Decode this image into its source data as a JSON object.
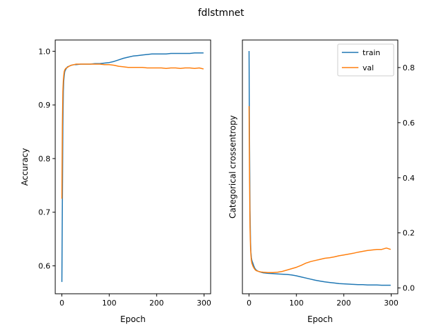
{
  "figure_title": "fdlstmnet",
  "colors": {
    "train": "#1f77b4",
    "val": "#ff7f0e"
  },
  "chart_data": [
    {
      "type": "line",
      "title": "",
      "xlabel": "Epoch",
      "ylabel": "Accuracy",
      "y_axis_side": "left",
      "xlim": [
        -14,
        314
      ],
      "ylim": [
        0.548,
        1.021
      ],
      "xticks": [
        0,
        100,
        200,
        300
      ],
      "yticks": [
        0.6,
        0.7,
        0.8,
        0.9,
        1.0
      ],
      "ytick_labels": [
        "0.6",
        "0.7",
        "0.8",
        "0.9",
        "1.0"
      ],
      "legend": null,
      "series": [
        {
          "key": "train",
          "x": [
            0,
            1,
            2,
            3,
            4,
            5,
            6,
            8,
            10,
            12,
            15,
            20,
            25,
            30,
            40,
            50,
            60,
            70,
            80,
            90,
            100,
            110,
            120,
            130,
            140,
            150,
            160,
            170,
            180,
            190,
            200,
            210,
            220,
            230,
            240,
            250,
            260,
            270,
            280,
            290,
            299
          ],
          "values": [
            0.57,
            0.72,
            0.86,
            0.925,
            0.945,
            0.955,
            0.962,
            0.966,
            0.969,
            0.971,
            0.972,
            0.974,
            0.975,
            0.975,
            0.976,
            0.976,
            0.976,
            0.977,
            0.977,
            0.978,
            0.979,
            0.981,
            0.984,
            0.987,
            0.989,
            0.991,
            0.992,
            0.993,
            0.994,
            0.995,
            0.995,
            0.995,
            0.995,
            0.996,
            0.996,
            0.996,
            0.996,
            0.996,
            0.997,
            0.997,
            0.997
          ]
        },
        {
          "key": "val",
          "x": [
            0,
            1,
            2,
            3,
            4,
            5,
            6,
            8,
            10,
            12,
            15,
            20,
            25,
            30,
            40,
            50,
            60,
            70,
            80,
            90,
            100,
            110,
            120,
            130,
            140,
            150,
            160,
            170,
            180,
            190,
            200,
            210,
            220,
            230,
            240,
            250,
            260,
            270,
            280,
            290,
            299
          ],
          "values": [
            0.725,
            0.86,
            0.925,
            0.945,
            0.955,
            0.962,
            0.965,
            0.968,
            0.969,
            0.97,
            0.972,
            0.974,
            0.975,
            0.976,
            0.976,
            0.976,
            0.976,
            0.976,
            0.976,
            0.975,
            0.975,
            0.974,
            0.972,
            0.971,
            0.97,
            0.97,
            0.97,
            0.97,
            0.969,
            0.969,
            0.969,
            0.969,
            0.968,
            0.969,
            0.969,
            0.968,
            0.969,
            0.969,
            0.968,
            0.969,
            0.967
          ]
        }
      ]
    },
    {
      "type": "line",
      "title": "",
      "xlabel": "Epoch",
      "ylabel": "Categorical crossentropy",
      "y_axis_side": "right",
      "xlim": [
        -14,
        314
      ],
      "ylim": [
        -0.021,
        0.9
      ],
      "xticks": [
        0,
        100,
        200,
        300
      ],
      "yticks": [
        0.0,
        0.2,
        0.4,
        0.6,
        0.8
      ],
      "ytick_labels": [
        "0.0",
        "0.2",
        "0.4",
        "0.6",
        "0.8"
      ],
      "legend": {
        "position": "top-right",
        "entries": [
          "train",
          "val"
        ]
      },
      "series": [
        {
          "key": "train",
          "name": "train",
          "x": [
            0,
            1,
            2,
            3,
            4,
            5,
            6,
            8,
            10,
            12,
            15,
            20,
            25,
            30,
            40,
            50,
            60,
            70,
            80,
            90,
            100,
            110,
            120,
            130,
            140,
            150,
            160,
            170,
            180,
            190,
            200,
            210,
            220,
            230,
            240,
            250,
            260,
            270,
            280,
            290,
            299
          ],
          "values": [
            0.86,
            0.52,
            0.28,
            0.17,
            0.13,
            0.11,
            0.1,
            0.09,
            0.08,
            0.072,
            0.065,
            0.06,
            0.057,
            0.055,
            0.053,
            0.052,
            0.051,
            0.05,
            0.049,
            0.047,
            0.044,
            0.04,
            0.036,
            0.032,
            0.028,
            0.025,
            0.022,
            0.02,
            0.018,
            0.016,
            0.015,
            0.014,
            0.013,
            0.012,
            0.012,
            0.011,
            0.011,
            0.011,
            0.01,
            0.01,
            0.01
          ]
        },
        {
          "key": "val",
          "name": "val",
          "x": [
            0,
            1,
            2,
            3,
            4,
            5,
            6,
            8,
            10,
            12,
            15,
            20,
            25,
            30,
            40,
            50,
            60,
            70,
            80,
            90,
            100,
            110,
            120,
            130,
            140,
            150,
            160,
            170,
            180,
            190,
            200,
            210,
            220,
            230,
            240,
            250,
            260,
            270,
            280,
            290,
            299
          ],
          "values": [
            0.66,
            0.4,
            0.22,
            0.15,
            0.12,
            0.1,
            0.09,
            0.08,
            0.073,
            0.068,
            0.063,
            0.06,
            0.058,
            0.057,
            0.056,
            0.056,
            0.057,
            0.06,
            0.065,
            0.07,
            0.075,
            0.082,
            0.09,
            0.096,
            0.1,
            0.104,
            0.108,
            0.11,
            0.113,
            0.117,
            0.12,
            0.123,
            0.126,
            0.13,
            0.133,
            0.136,
            0.138,
            0.14,
            0.14,
            0.145,
            0.14
          ]
        }
      ]
    }
  ]
}
